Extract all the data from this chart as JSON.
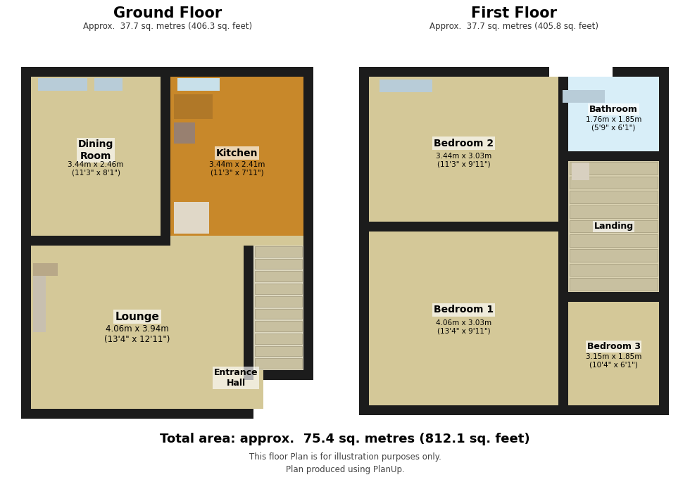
{
  "bg_color": "#ffffff",
  "wall_color": "#1c1c1c",
  "floor_warm": "#d4c898",
  "floor_kitchen": "#c8882a",
  "floor_white": "#f5f5f0",
  "floor_blue": "#c8dde8",
  "floor_stair": "#d8d0b0",
  "ground_floor_title": "Ground Floor",
  "ground_floor_sub": "Approx.  37.7 sq. metres (406.3 sq. feet)",
  "first_floor_title": "First Floor",
  "first_floor_sub": "Approx.  37.7 sq. metres (405.8 sq. feet)",
  "total_area": "Total area: approx.  75.4 sq. metres (812.1 sq. feet)",
  "disclaimer1": "This floor Plan is for illustration purposes only.",
  "disclaimer2": "Plan produced using PlanUp.",
  "rooms": {
    "dining_room": {
      "label": "Dining\nRoom",
      "dims": "3.44m x 2.46m\n(11'3\" x 8'1\")"
    },
    "kitchen": {
      "label": "Kitchen",
      "dims": "3.44m x 2.41m\n(11'3\" x 7'11\")"
    },
    "lounge": {
      "label": "Lounge",
      "dims": "4.06m x 3.94m\n(13'4\" x 12'11\")"
    },
    "entrance_hall": {
      "label": "Entrance\nHall",
      "dims": ""
    },
    "bedroom2": {
      "label": "Bedroom 2",
      "dims": "3.44m x 3.03m\n(11'3\" x 9'11\")"
    },
    "bathroom": {
      "label": "Bathroom",
      "dims": "1.76m x 1.85m\n(5'9\" x 6'1\")"
    },
    "landing": {
      "label": "Landing",
      "dims": ""
    },
    "bedroom1": {
      "label": "Bedroom 1",
      "dims": "4.06m x 3.03m\n(13'4\" x 9'11\")"
    },
    "bedroom3": {
      "label": "Bedroom 3",
      "dims": "3.15m x 1.85m\n(10'4\" x 6'1\")"
    }
  }
}
